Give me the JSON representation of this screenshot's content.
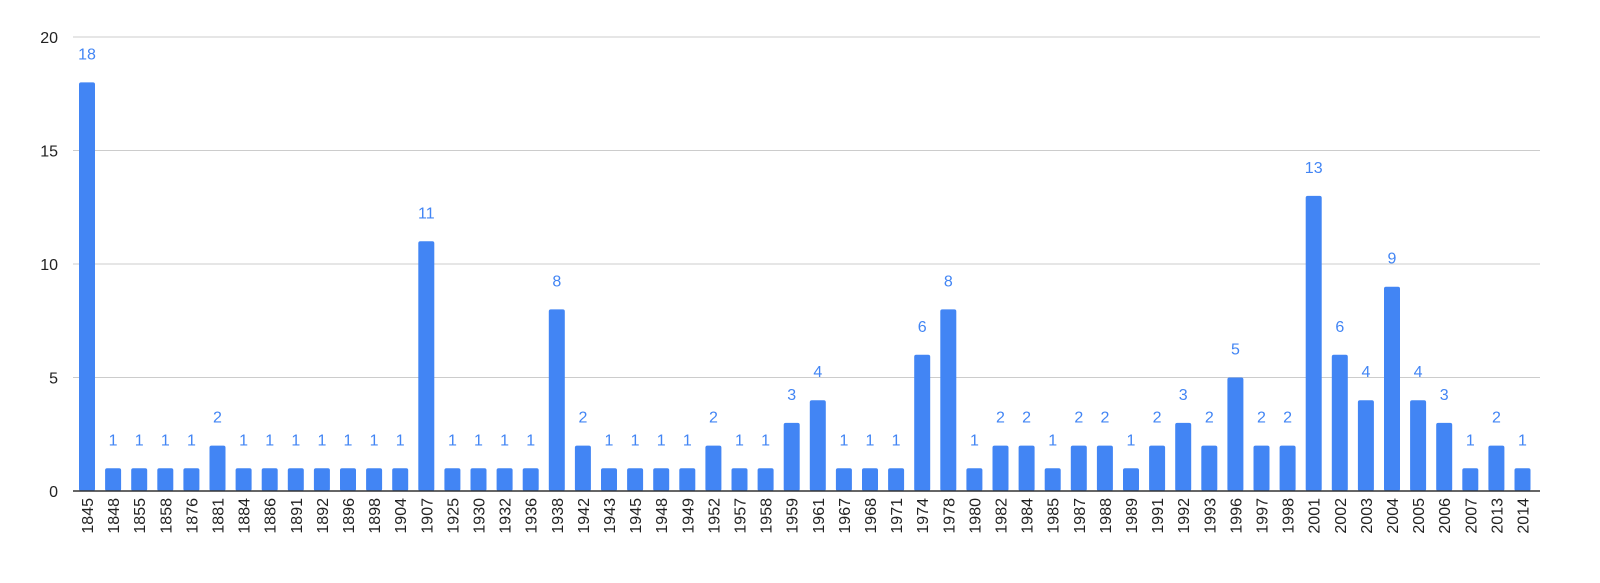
{
  "chart_data": {
    "type": "bar",
    "title": "",
    "xlabel": "",
    "ylabel": "",
    "ylim": [
      0,
      20
    ],
    "yticks": [
      0,
      5,
      10,
      15,
      20
    ],
    "grid": true,
    "legend": "none",
    "data_labels": true,
    "colors": {
      "bar": "#4285f4",
      "label": "#4285f4",
      "grid": "#cccccc",
      "axis": "#333333"
    },
    "categories": [
      "1845",
      "1848",
      "1855",
      "1858",
      "1876",
      "1881",
      "1884",
      "1886",
      "1891",
      "1892",
      "1896",
      "1898",
      "1904",
      "1907",
      "1925",
      "1930",
      "1932",
      "1936",
      "1938",
      "1942",
      "1943",
      "1945",
      "1948",
      "1949",
      "1952",
      "1957",
      "1958",
      "1959",
      "1961",
      "1967",
      "1968",
      "1971",
      "1974",
      "1978",
      "1980",
      "1982",
      "1984",
      "1985",
      "1987",
      "1988",
      "1989",
      "1991",
      "1992",
      "1993",
      "1996",
      "1997",
      "1998",
      "2001",
      "2002",
      "2003",
      "2004",
      "2005",
      "2006",
      "2007",
      "2013",
      "2014"
    ],
    "values": [
      18,
      1,
      1,
      1,
      1,
      2,
      1,
      1,
      1,
      1,
      1,
      1,
      1,
      11,
      1,
      1,
      1,
      1,
      8,
      2,
      1,
      1,
      1,
      1,
      2,
      1,
      1,
      3,
      4,
      1,
      1,
      1,
      6,
      8,
      1,
      2,
      2,
      1,
      2,
      2,
      1,
      2,
      3,
      2,
      5,
      2,
      2,
      13,
      6,
      4,
      9,
      4,
      3,
      1,
      2,
      1
    ]
  }
}
